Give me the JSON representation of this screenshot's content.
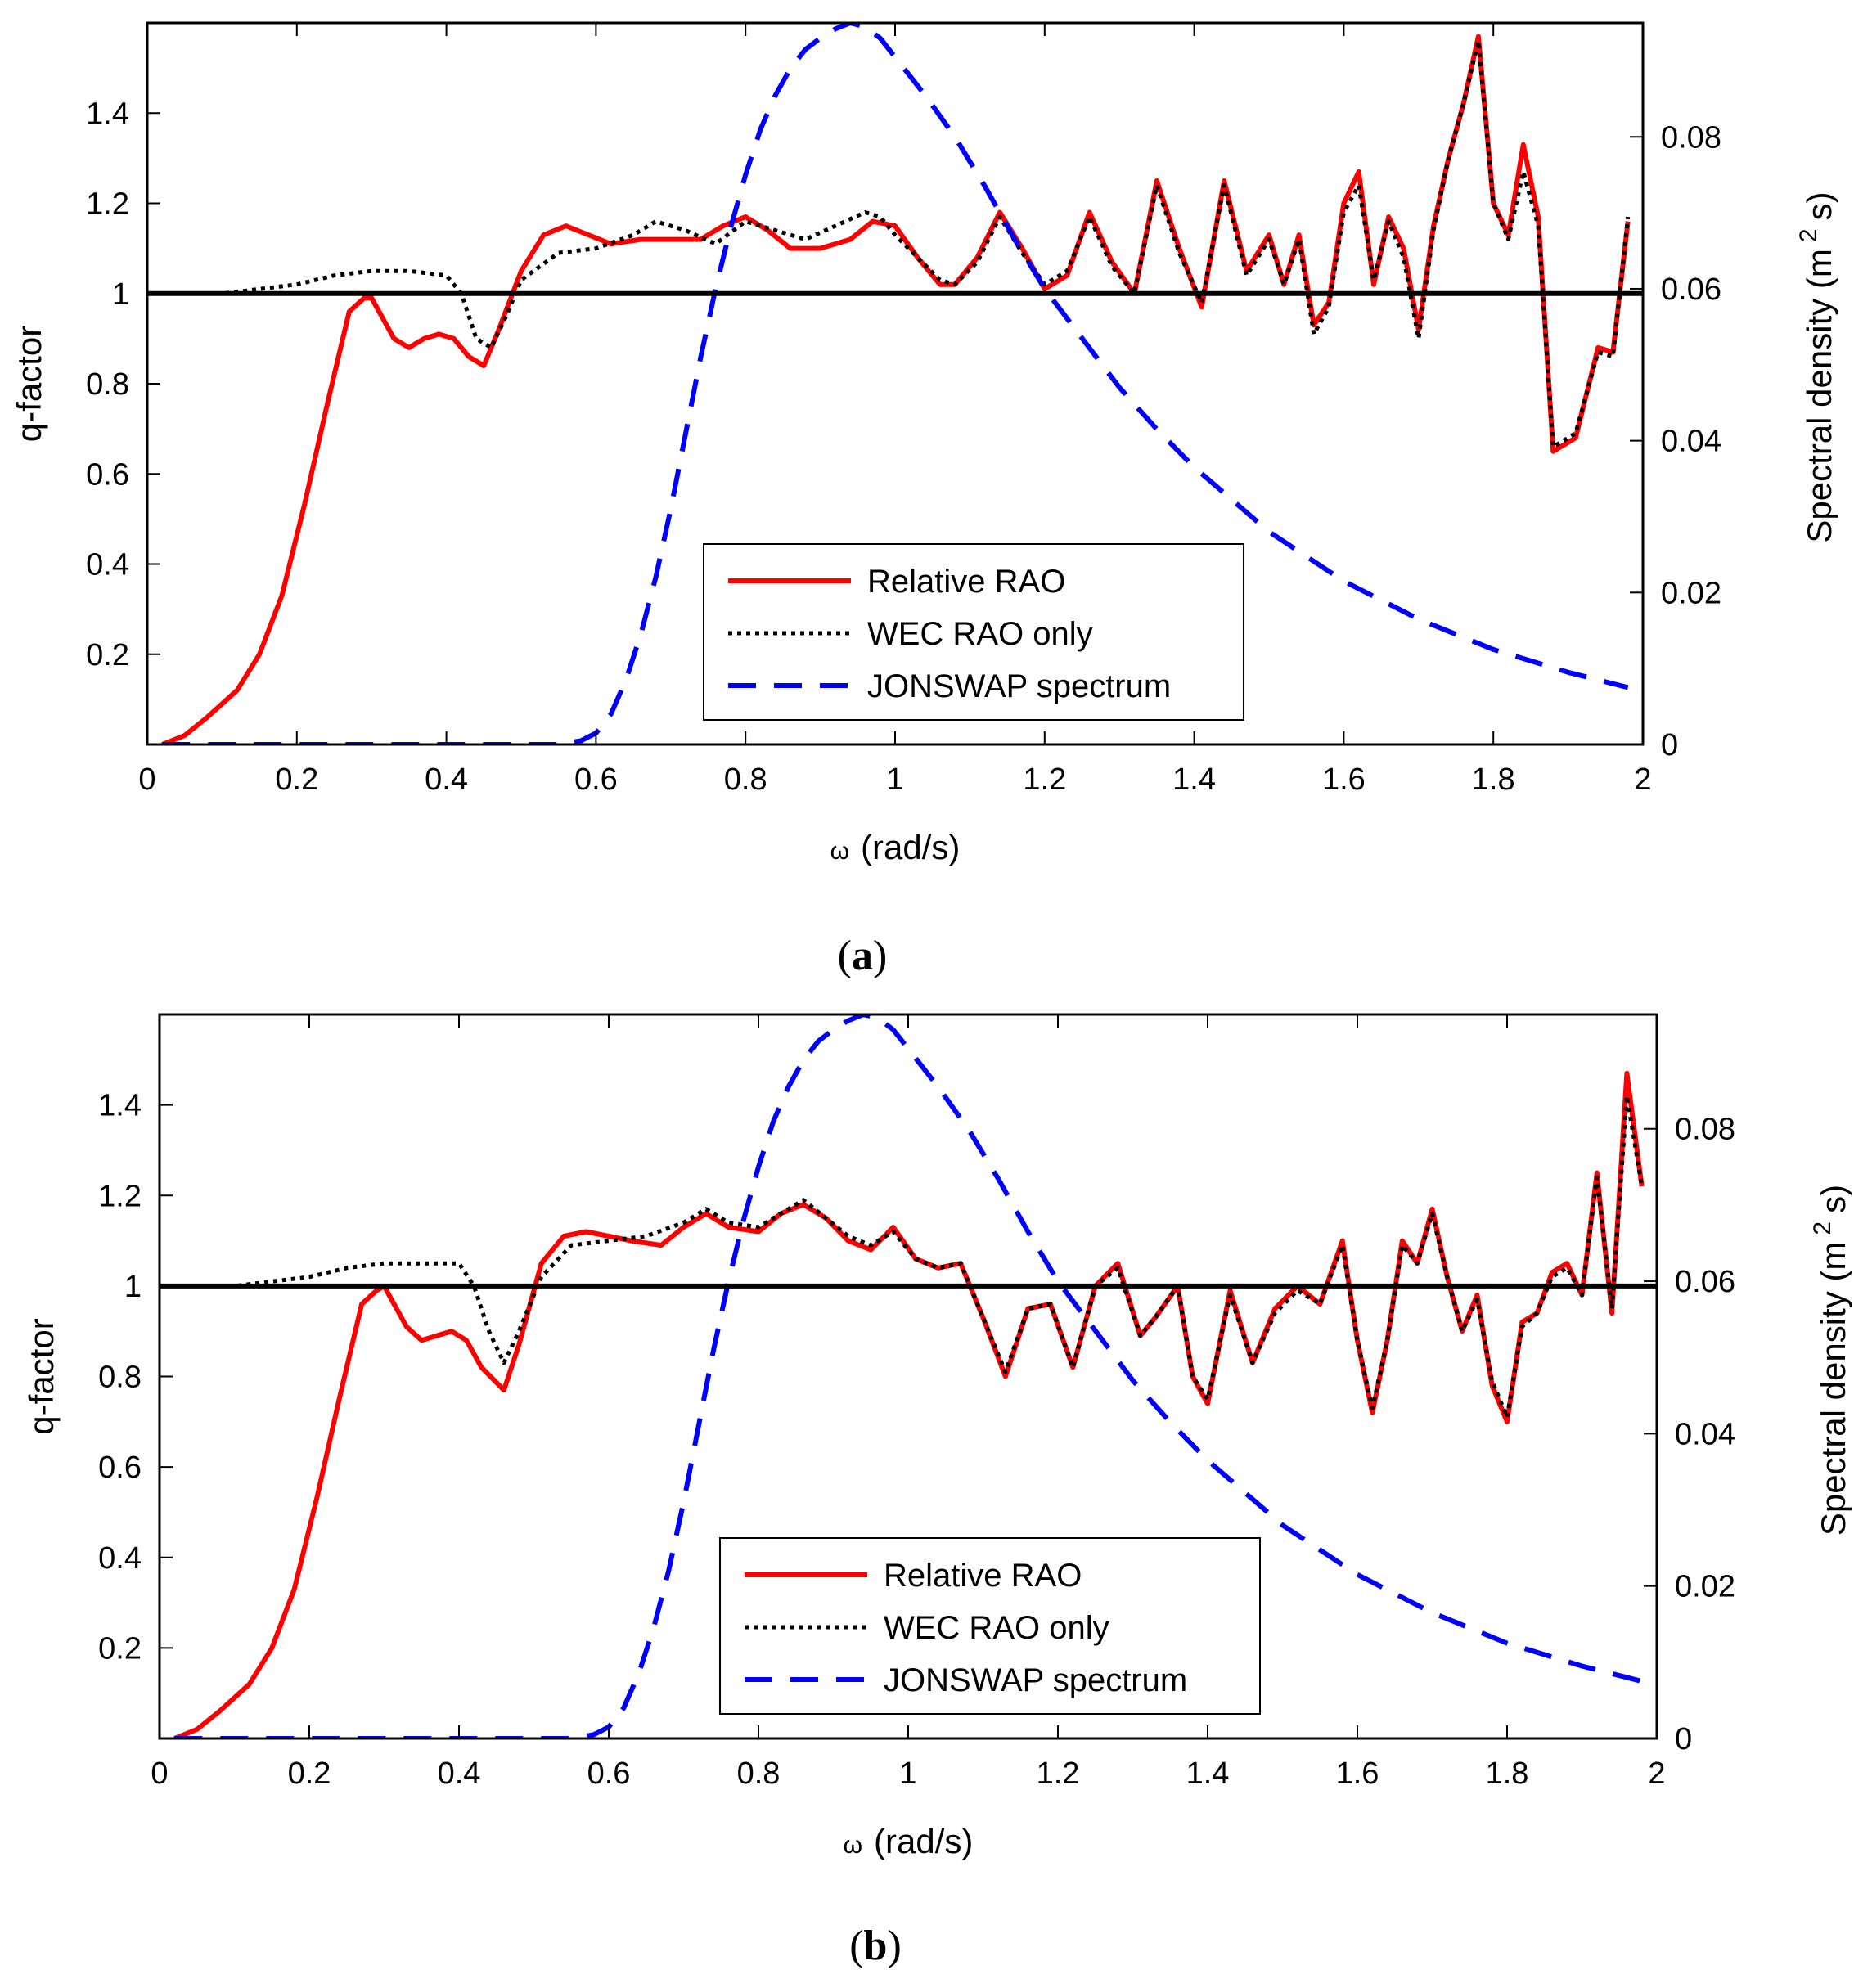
{
  "figure_captions": {
    "a": {
      "open": "(",
      "letter": "a",
      "close": ")"
    },
    "b": {
      "open": "(",
      "letter": "b",
      "close": ")"
    }
  },
  "colors": {
    "relative_rao": "#ff0000",
    "wec_rao": "#000000",
    "jonswap": "#0000ff",
    "reference_line": "#000000"
  },
  "chart_data": [
    {
      "panel": "a",
      "type": "line",
      "xlabel_symbol": "ω",
      "xlabel_unit": "(rad/s)",
      "ylabel_left": "q-factor",
      "ylabel_right_prefix": "Spectral density (m",
      "ylabel_right_sup": "2",
      "ylabel_right_suffix": "s)",
      "xlim": [
        0,
        2
      ],
      "ylim_left": [
        0,
        1.6
      ],
      "ylim_right": [
        0,
        0.095
      ],
      "xticks": [
        "0",
        "0.2",
        "0.4",
        "0.6",
        "0.8",
        "1",
        "1.2",
        "1.4",
        "1.6",
        "1.8",
        "2"
      ],
      "yticks_left": [
        "0.2",
        "0.4",
        "0.6",
        "0.8",
        "1",
        "1.2",
        "1.4"
      ],
      "yticks_right": [
        "0",
        "0.02",
        "0.04",
        "0.06",
        "0.08"
      ],
      "reference_line_y": 1.0,
      "legend": {
        "placement": "center-bottom",
        "entries": [
          "Relative RAO",
          "WEC RAO only",
          "JONSWAP spectrum"
        ]
      },
      "series": [
        {
          "name": "Relative RAO",
          "axis": "left",
          "style": "solid",
          "x": [
            0.02,
            0.05,
            0.08,
            0.12,
            0.15,
            0.18,
            0.21,
            0.24,
            0.27,
            0.29,
            0.3,
            0.31,
            0.33,
            0.35,
            0.37,
            0.39,
            0.41,
            0.43,
            0.45,
            0.47,
            0.5,
            0.53,
            0.56,
            0.59,
            0.62,
            0.66,
            0.7,
            0.74,
            0.77,
            0.8,
            0.83,
            0.86,
            0.9,
            0.94,
            0.97,
            1.0,
            1.03,
            1.06,
            1.08,
            1.11,
            1.14,
            1.17,
            1.2,
            1.23,
            1.26,
            1.29,
            1.32,
            1.35,
            1.38,
            1.41,
            1.44,
            1.47,
            1.5,
            1.52,
            1.54,
            1.56,
            1.58,
            1.6,
            1.62,
            1.64,
            1.66,
            1.68,
            1.7,
            1.72,
            1.74,
            1.76,
            1.78,
            1.8,
            1.82,
            1.84,
            1.86,
            1.88,
            1.91,
            1.94,
            1.96,
            1.98
          ],
          "y": [
            0.0,
            0.02,
            0.06,
            0.12,
            0.2,
            0.33,
            0.53,
            0.75,
            0.96,
            0.99,
            0.99,
            0.96,
            0.9,
            0.88,
            0.9,
            0.91,
            0.9,
            0.86,
            0.84,
            0.92,
            1.05,
            1.13,
            1.15,
            1.13,
            1.11,
            1.12,
            1.12,
            1.12,
            1.15,
            1.17,
            1.14,
            1.1,
            1.1,
            1.12,
            1.16,
            1.15,
            1.08,
            1.02,
            1.02,
            1.08,
            1.18,
            1.1,
            1.01,
            1.04,
            1.18,
            1.07,
            1.0,
            1.25,
            1.1,
            0.97,
            1.25,
            1.05,
            1.13,
            1.02,
            1.13,
            0.93,
            0.98,
            1.2,
            1.27,
            1.02,
            1.17,
            1.1,
            0.92,
            1.15,
            1.3,
            1.42,
            1.57,
            1.2,
            1.13,
            1.33,
            1.17,
            0.65,
            0.68,
            0.88,
            0.87,
            1.16
          ]
        },
        {
          "name": "WEC RAO only",
          "axis": "left",
          "style": "dotted",
          "x": [
            0.02,
            0.1,
            0.2,
            0.25,
            0.3,
            0.35,
            0.4,
            0.42,
            0.44,
            0.46,
            0.48,
            0.5,
            0.55,
            0.6,
            0.65,
            0.68,
            0.72,
            0.76,
            0.8,
            0.84,
            0.88,
            0.92,
            0.96,
            0.98,
            1.0,
            1.03,
            1.06,
            1.08,
            1.11,
            1.14,
            1.17,
            1.2,
            1.23,
            1.26,
            1.29,
            1.32,
            1.35,
            1.38,
            1.41,
            1.44,
            1.47,
            1.5,
            1.52,
            1.54,
            1.56,
            1.58,
            1.6,
            1.62,
            1.64,
            1.66,
            1.68,
            1.7,
            1.72,
            1.74,
            1.76,
            1.78,
            1.8,
            1.82,
            1.84,
            1.86,
            1.88,
            1.91,
            1.94,
            1.96,
            1.98
          ],
          "y": [
            1.0,
            1.0,
            1.02,
            1.04,
            1.05,
            1.05,
            1.04,
            1.0,
            0.9,
            0.88,
            0.95,
            1.03,
            1.09,
            1.1,
            1.13,
            1.16,
            1.14,
            1.11,
            1.16,
            1.14,
            1.12,
            1.15,
            1.18,
            1.17,
            1.13,
            1.08,
            1.03,
            1.02,
            1.07,
            1.17,
            1.09,
            1.02,
            1.05,
            1.17,
            1.06,
            1.0,
            1.24,
            1.09,
            0.98,
            1.24,
            1.04,
            1.12,
            1.02,
            1.12,
            0.91,
            0.97,
            1.18,
            1.24,
            1.03,
            1.16,
            1.08,
            0.9,
            1.14,
            1.3,
            1.42,
            1.56,
            1.2,
            1.12,
            1.27,
            1.15,
            0.66,
            0.69,
            0.87,
            0.86,
            1.17
          ]
        },
        {
          "name": "JONSWAP spectrum",
          "axis": "right",
          "style": "dashed",
          "x": [
            0.02,
            0.1,
            0.2,
            0.3,
            0.4,
            0.5,
            0.55,
            0.58,
            0.6,
            0.62,
            0.64,
            0.66,
            0.68,
            0.7,
            0.72,
            0.74,
            0.76,
            0.78,
            0.8,
            0.82,
            0.84,
            0.86,
            0.88,
            0.9,
            0.92,
            0.94,
            0.96,
            0.98,
            1.0,
            1.04,
            1.08,
            1.12,
            1.16,
            1.2,
            1.25,
            1.3,
            1.35,
            1.4,
            1.5,
            1.6,
            1.7,
            1.8,
            1.9,
            1.98
          ],
          "y": [
            0,
            0,
            0,
            0,
            0,
            0,
            0,
            0.0005,
            0.0015,
            0.004,
            0.0085,
            0.0145,
            0.022,
            0.031,
            0.041,
            0.051,
            0.06,
            0.068,
            0.075,
            0.081,
            0.0855,
            0.089,
            0.0915,
            0.093,
            0.0942,
            0.095,
            0.0945,
            0.093,
            0.0905,
            0.0855,
            0.08,
            0.0735,
            0.0665,
            0.06,
            0.0535,
            0.047,
            0.0415,
            0.0365,
            0.028,
            0.0215,
            0.0165,
            0.0125,
            0.0095,
            0.0075
          ]
        }
      ]
    },
    {
      "panel": "b",
      "type": "line",
      "xlabel_symbol": "ω",
      "xlabel_unit": "(rad/s)",
      "ylabel_left": "q-factor",
      "ylabel_right_prefix": "Spectral density (m",
      "ylabel_right_sup": "2",
      "ylabel_right_suffix": "s)",
      "xlim": [
        0,
        2
      ],
      "ylim_left": [
        0,
        1.6
      ],
      "ylim_right": [
        0,
        0.095
      ],
      "xticks": [
        "0",
        "0.2",
        "0.4",
        "0.6",
        "0.8",
        "1",
        "1.2",
        "1.4",
        "1.6",
        "1.8",
        "2"
      ],
      "yticks_left": [
        "0.2",
        "0.4",
        "0.6",
        "0.8",
        "1",
        "1.2",
        "1.4"
      ],
      "yticks_right": [
        "0",
        "0.02",
        "0.04",
        "0.06",
        "0.08"
      ],
      "reference_line_y": 1.0,
      "legend": {
        "placement": "center-bottom",
        "entries": [
          "Relative RAO",
          "WEC RAO only",
          "JONSWAP spectrum"
        ]
      },
      "series": [
        {
          "name": "Relative RAO",
          "axis": "left",
          "style": "solid",
          "x": [
            0.02,
            0.05,
            0.08,
            0.12,
            0.15,
            0.18,
            0.21,
            0.24,
            0.27,
            0.29,
            0.3,
            0.31,
            0.33,
            0.35,
            0.37,
            0.39,
            0.41,
            0.43,
            0.46,
            0.48,
            0.51,
            0.54,
            0.57,
            0.6,
            0.63,
            0.67,
            0.7,
            0.73,
            0.76,
            0.8,
            0.83,
            0.86,
            0.89,
            0.92,
            0.95,
            0.98,
            1.01,
            1.04,
            1.07,
            1.1,
            1.13,
            1.16,
            1.19,
            1.22,
            1.25,
            1.28,
            1.31,
            1.33,
            1.36,
            1.38,
            1.4,
            1.43,
            1.46,
            1.49,
            1.52,
            1.55,
            1.58,
            1.6,
            1.62,
            1.64,
            1.66,
            1.68,
            1.7,
            1.72,
            1.74,
            1.76,
            1.78,
            1.8,
            1.82,
            1.84,
            1.86,
            1.88,
            1.9,
            1.92,
            1.94,
            1.96,
            1.98
          ],
          "y": [
            0.0,
            0.02,
            0.06,
            0.12,
            0.2,
            0.33,
            0.53,
            0.75,
            0.96,
            0.99,
            1.0,
            0.97,
            0.91,
            0.88,
            0.89,
            0.9,
            0.88,
            0.82,
            0.77,
            0.87,
            1.05,
            1.11,
            1.12,
            1.11,
            1.1,
            1.09,
            1.13,
            1.16,
            1.13,
            1.12,
            1.16,
            1.18,
            1.15,
            1.1,
            1.08,
            1.13,
            1.06,
            1.04,
            1.05,
            0.93,
            0.8,
            0.95,
            0.96,
            0.82,
            1.0,
            1.05,
            0.89,
            0.93,
            1.0,
            0.8,
            0.74,
            0.99,
            0.83,
            0.95,
            1.0,
            0.96,
            1.1,
            0.88,
            0.72,
            0.88,
            1.1,
            1.05,
            1.17,
            1.02,
            0.9,
            0.98,
            0.78,
            0.7,
            0.92,
            0.94,
            1.03,
            1.05,
            0.98,
            1.25,
            0.94,
            1.47,
            1.22
          ]
        },
        {
          "name": "WEC RAO only",
          "axis": "left",
          "style": "dotted",
          "x": [
            0.02,
            0.1,
            0.2,
            0.25,
            0.3,
            0.35,
            0.4,
            0.42,
            0.44,
            0.46,
            0.48,
            0.51,
            0.55,
            0.6,
            0.65,
            0.7,
            0.73,
            0.76,
            0.8,
            0.83,
            0.86,
            0.89,
            0.92,
            0.95,
            0.98,
            1.01,
            1.04,
            1.07,
            1.1,
            1.13,
            1.16,
            1.19,
            1.22,
            1.25,
            1.28,
            1.31,
            1.33,
            1.36,
            1.38,
            1.4,
            1.43,
            1.46,
            1.49,
            1.52,
            1.55,
            1.58,
            1.6,
            1.62,
            1.64,
            1.66,
            1.68,
            1.7,
            1.72,
            1.74,
            1.76,
            1.78,
            1.8,
            1.82,
            1.84,
            1.86,
            1.88,
            1.9,
            1.92,
            1.94,
            1.96,
            1.98
          ],
          "y": [
            1.0,
            1.0,
            1.02,
            1.04,
            1.05,
            1.05,
            1.05,
            1.0,
            0.9,
            0.83,
            0.9,
            1.02,
            1.09,
            1.1,
            1.11,
            1.14,
            1.17,
            1.14,
            1.13,
            1.16,
            1.19,
            1.15,
            1.11,
            1.09,
            1.12,
            1.06,
            1.04,
            1.05,
            0.93,
            0.81,
            0.95,
            0.96,
            0.82,
            1.0,
            1.04,
            0.89,
            0.93,
            1.0,
            0.8,
            0.75,
            0.98,
            0.83,
            0.94,
            0.99,
            0.96,
            1.09,
            0.88,
            0.73,
            0.88,
            1.09,
            1.05,
            1.16,
            1.02,
            0.9,
            0.97,
            0.79,
            0.71,
            0.91,
            0.94,
            1.02,
            1.04,
            0.98,
            1.24,
            0.95,
            1.42,
            1.22
          ]
        },
        {
          "name": "JONSWAP spectrum",
          "axis": "right",
          "style": "dashed",
          "x": [
            0.02,
            0.1,
            0.2,
            0.3,
            0.4,
            0.5,
            0.55,
            0.58,
            0.6,
            0.62,
            0.64,
            0.66,
            0.68,
            0.7,
            0.72,
            0.74,
            0.76,
            0.78,
            0.8,
            0.82,
            0.84,
            0.86,
            0.88,
            0.9,
            0.92,
            0.94,
            0.96,
            0.98,
            1.0,
            1.04,
            1.08,
            1.12,
            1.16,
            1.2,
            1.25,
            1.3,
            1.35,
            1.4,
            1.5,
            1.6,
            1.7,
            1.8,
            1.9,
            1.98
          ],
          "y": [
            0,
            0,
            0,
            0,
            0,
            0,
            0,
            0.0005,
            0.0015,
            0.004,
            0.0085,
            0.0145,
            0.022,
            0.031,
            0.041,
            0.051,
            0.06,
            0.068,
            0.075,
            0.081,
            0.0855,
            0.089,
            0.0915,
            0.093,
            0.0942,
            0.095,
            0.0945,
            0.093,
            0.0905,
            0.0855,
            0.08,
            0.0735,
            0.0665,
            0.06,
            0.0535,
            0.047,
            0.0415,
            0.0365,
            0.028,
            0.0215,
            0.0165,
            0.0125,
            0.0095,
            0.0075
          ]
        }
      ]
    }
  ]
}
